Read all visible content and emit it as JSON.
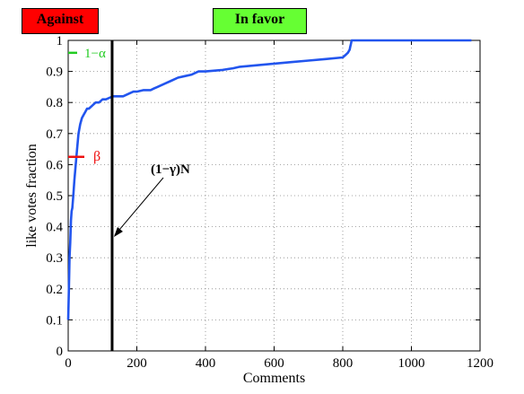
{
  "colors": {
    "against_bg": "#ff0000",
    "favor_bg": "#66ff33",
    "curve": "#2255ee",
    "beta_marker": "#ee1111",
    "alpha_marker": "#22cc22",
    "threshold_line": "#000000"
  },
  "regions": {
    "against_label": "Against",
    "favor_label": "In favor"
  },
  "annotations": {
    "alpha_label": "1−α",
    "beta_label": "β",
    "threshold_label": "(1−γ)N"
  },
  "chart_data": {
    "type": "line",
    "title": "",
    "xlabel": "Comments",
    "ylabel": "like votes fraction",
    "xlim": [
      0,
      1200
    ],
    "ylim": [
      0,
      1
    ],
    "xticks": [
      0,
      200,
      400,
      600,
      800,
      1000,
      1200
    ],
    "yticks": [
      0,
      0.1,
      0.2,
      0.3,
      0.4,
      0.5,
      0.6,
      0.7,
      0.8,
      0.9,
      1
    ],
    "grid": true,
    "threshold_x": 128,
    "beta": 0.625,
    "one_minus_alpha": 0.96,
    "series": [
      {
        "x": [
          0,
          2,
          4,
          6,
          8,
          10,
          12,
          15,
          18,
          22,
          26,
          30,
          35,
          40,
          45,
          50,
          55,
          60,
          70,
          80,
          90,
          100,
          110,
          120,
          130,
          140,
          150,
          160,
          180,
          190,
          200,
          220,
          240,
          250,
          260,
          280,
          300,
          320,
          340,
          360,
          380,
          400,
          450,
          480,
          500,
          550,
          600,
          650,
          700,
          750,
          800,
          810,
          815,
          820,
          822,
          824,
          826,
          830,
          900,
          1000,
          1100,
          1175
        ],
        "y": [
          0.1,
          0.2,
          0.3,
          0.35,
          0.42,
          0.45,
          0.46,
          0.5,
          0.55,
          0.6,
          0.65,
          0.7,
          0.73,
          0.75,
          0.76,
          0.77,
          0.78,
          0.78,
          0.79,
          0.8,
          0.8,
          0.81,
          0.81,
          0.815,
          0.82,
          0.82,
          0.82,
          0.82,
          0.83,
          0.835,
          0.835,
          0.84,
          0.84,
          0.845,
          0.85,
          0.86,
          0.87,
          0.88,
          0.885,
          0.89,
          0.9,
          0.9,
          0.905,
          0.91,
          0.915,
          0.92,
          0.925,
          0.93,
          0.935,
          0.94,
          0.945,
          0.955,
          0.96,
          0.97,
          0.98,
          0.99,
          1.0,
          1.0,
          1.0,
          1.0,
          1.0,
          1.0
        ]
      }
    ]
  }
}
